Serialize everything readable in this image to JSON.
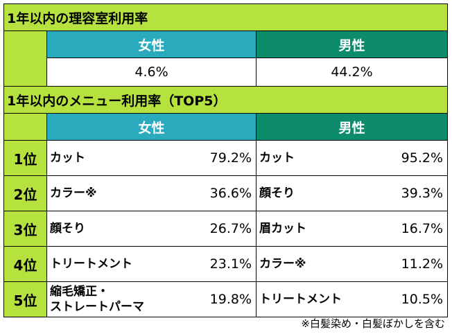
{
  "section1": {
    "title": "1年以内の理容室利用率",
    "female_label": "女性",
    "male_label": "男性",
    "female_rate": "4.6%",
    "male_rate": "44.2%"
  },
  "section2": {
    "title": "1年以内のメニュー利用率（TOP5）",
    "female_label": "女性",
    "male_label": "男性",
    "rows": [
      {
        "rank": "1位",
        "f_name": "カット",
        "f_pct": "79.2%",
        "m_name": "カット",
        "m_pct": "95.2%"
      },
      {
        "rank": "2位",
        "f_name": "カラー※",
        "f_pct": "36.6%",
        "m_name": "顔そり",
        "m_pct": "39.3%"
      },
      {
        "rank": "3位",
        "f_name": "顔そり",
        "f_pct": "26.7%",
        "m_name": "眉カット",
        "m_pct": "16.7%"
      },
      {
        "rank": "4位",
        "f_name": "トリートメント",
        "f_pct": "23.1%",
        "m_name": "カラー※",
        "m_pct": "11.2%"
      },
      {
        "rank": "5位",
        "f_name": "縮毛矯正・\nストレートパーマ",
        "f_pct": "19.8%",
        "m_name": "トリートメント",
        "m_pct": "10.5%"
      }
    ]
  },
  "footnote": "※白髪染め・白髪ぼかしを含む"
}
